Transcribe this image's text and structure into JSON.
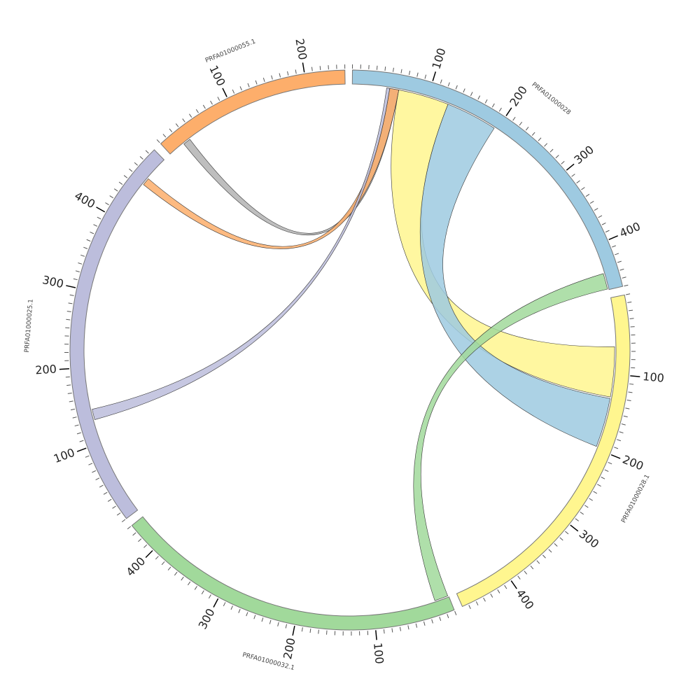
{
  "chart_data": {
    "type": "chord",
    "title": "",
    "scale_degrees_per_unit": 0.166,
    "tick_major_interval": 100,
    "tick_minor_interval": 10,
    "sectors": [
      {
        "name": "PRFA01000028",
        "length": 460,
        "color": "#9ecae1"
      },
      {
        "name": "PRFA01000028.1",
        "length": 468,
        "color": "#fff68f"
      },
      {
        "name": "PRFA01000032.1",
        "length": 440,
        "color": "#a1d99b"
      },
      {
        "name": "PRFA01000025.1",
        "length": 498,
        "color": "#bcbddc"
      },
      {
        "name": "PRFA01000055.1",
        "length": 250,
        "color": "#fdae6b"
      }
    ],
    "links": [
      {
        "from": "PRFA01000028.1",
        "from_range": [
          64,
          130
        ],
        "to": "PRFA01000028",
        "to_range": [
          61,
          128
        ],
        "color": "#fff68f"
      },
      {
        "from": "PRFA01000028",
        "from_range": [
          128,
          196
        ],
        "to": "PRFA01000028.1",
        "to_range": [
          132,
          197
        ],
        "color": "#9ecae1"
      },
      {
        "from": "PRFA01000032.1",
        "from_range": [
          1,
          19
        ],
        "to": "PRFA01000028",
        "to_range": [
          438,
          459
        ],
        "color": "#a1d99b"
      },
      {
        "from": "PRFA01000055.1",
        "from_range": [
          22,
          32
        ],
        "to": "PRFA01000028",
        "to_range": [
          49,
          61
        ],
        "color": "#b3b3b3"
      },
      {
        "from": "PRFA01000025.1",
        "from_range": [
          456,
          466
        ],
        "to": "PRFA01000028",
        "to_range": [
          49,
          61
        ],
        "color": "#fdae6b"
      },
      {
        "from": "PRFA01000025.1",
        "from_range": [
          131,
          145
        ],
        "to": "PRFA01000028",
        "to_range": [
          45,
          49
        ],
        "color": "#bcbddc"
      }
    ]
  }
}
